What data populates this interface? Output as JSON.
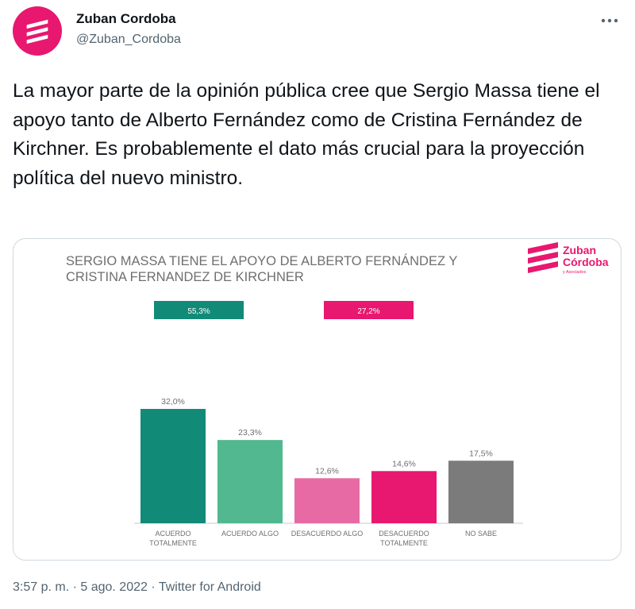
{
  "tweet": {
    "author_name": "Zuban Cordoba",
    "author_handle": "@Zuban_Cordoba",
    "avatar_icon": "zuban-logo-icon",
    "more_icon": "more-options-icon",
    "text": "La mayor parte de la opinión pública cree que Sergio Massa tiene el apoyo tanto de Alberto Fernández como de Cristina Fernández de Kirchner. Es probablemente el dato más crucial para la proyección política del nuevo ministro.",
    "timestamp": "3:57 p. m. · 5 ago. 2022 · Twitter for Android"
  },
  "media": {
    "logo_lines": [
      "Zuban",
      "Córdoba",
      "y Asociados"
    ],
    "summary_labels": [
      "55,3%",
      "27,2%"
    ],
    "summary_colors": [
      "#128a78",
      "#e8176f"
    ]
  },
  "chart_data": {
    "type": "bar",
    "title": "SERGIO MASSA TIENE EL APOYO DE ALBERTO FERNÁNDEZ Y CRISTINA FERNANDEZ DE KIRCHNER",
    "title_lines": [
      "SERGIO MASSA TIENE EL APOYO DE ALBERTO FERNÁNDEZ Y",
      "CRISTINA FERNANDEZ DE KIRCHNER"
    ],
    "categories": [
      [
        "ACUERDO",
        "TOTALMENTE"
      ],
      [
        "ACUERDO ALGO"
      ],
      [
        "DESACUERDO ALGO"
      ],
      [
        "DESACUERDO",
        "TOTALMENTE"
      ],
      [
        "NO SABE"
      ]
    ],
    "values": [
      32.0,
      23.3,
      12.6,
      14.6,
      17.5
    ],
    "value_labels": [
      "32,0%",
      "23,3%",
      "12,6%",
      "14,6%",
      "17,5%"
    ],
    "colors": [
      "#128a78",
      "#52b88f",
      "#e76aa4",
      "#e8176f",
      "#7b7b7b"
    ],
    "ylim": [
      0,
      32
    ],
    "grid": false,
    "legend": "none"
  }
}
